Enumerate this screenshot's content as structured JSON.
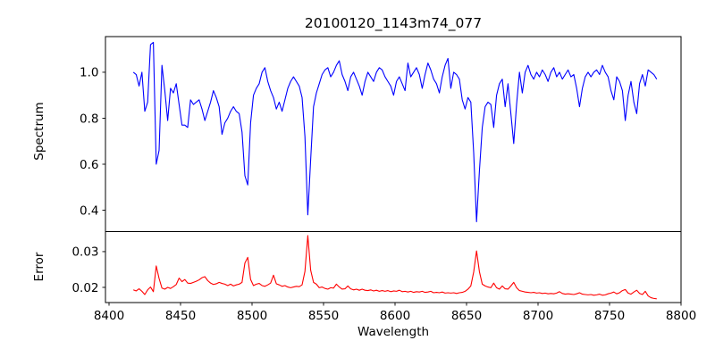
{
  "title": "20100120_1143m74_077",
  "colors": {
    "background": "#ffffff",
    "axis": "#000000",
    "text": "#000000",
    "spectrum_line": "#0000ff",
    "error_line": "#ff0000"
  },
  "chart_data": {
    "type": "line",
    "title": "20100120_1143m74_077",
    "xlabel": "Wavelength",
    "grid": false,
    "legend": "none",
    "x_start": 8417,
    "x_step": 2,
    "xlim": [
      8397.5,
      8800
    ],
    "xticks": [
      8400,
      8450,
      8500,
      8550,
      8600,
      8650,
      8700,
      8750,
      8800
    ],
    "xtick_labels": [
      "8400",
      "8450",
      "8500",
      "8550",
      "8600",
      "8650",
      "8700",
      "8750",
      "8800"
    ],
    "panels": [
      {
        "name": "spectrum",
        "ylabel": "Spectrum",
        "ylim": [
          0.307,
          1.155
        ],
        "yticks": [
          0.4,
          0.6,
          0.8,
          1.0
        ],
        "ytick_labels": [
          "0.4",
          "0.6",
          "0.8",
          "1.0"
        ],
        "line_color": "#0000ff",
        "values": [
          1.0,
          0.99,
          0.94,
          1.0,
          0.83,
          0.87,
          1.12,
          1.13,
          0.6,
          0.66,
          1.03,
          0.92,
          0.79,
          0.93,
          0.91,
          0.95,
          0.86,
          0.77,
          0.77,
          0.76,
          0.88,
          0.86,
          0.87,
          0.88,
          0.84,
          0.79,
          0.83,
          0.87,
          0.92,
          0.89,
          0.85,
          0.73,
          0.78,
          0.8,
          0.83,
          0.85,
          0.83,
          0.82,
          0.74,
          0.55,
          0.51,
          0.78,
          0.9,
          0.93,
          0.95,
          1.0,
          1.02,
          0.96,
          0.92,
          0.89,
          0.84,
          0.87,
          0.83,
          0.88,
          0.93,
          0.96,
          0.98,
          0.96,
          0.94,
          0.89,
          0.72,
          0.38,
          0.62,
          0.85,
          0.91,
          0.95,
          0.99,
          1.01,
          1.02,
          0.98,
          1.0,
          1.03,
          1.05,
          0.99,
          0.96,
          0.92,
          0.98,
          1.0,
          0.97,
          0.94,
          0.9,
          0.96,
          1.0,
          0.98,
          0.96,
          1.0,
          1.02,
          1.01,
          0.98,
          0.96,
          0.94,
          0.9,
          0.96,
          0.98,
          0.95,
          0.92,
          1.04,
          0.98,
          1.0,
          1.02,
          0.99,
          0.93,
          0.99,
          1.04,
          1.01,
          0.97,
          0.95,
          0.91,
          0.98,
          1.03,
          1.06,
          0.93,
          1.0,
          0.99,
          0.97,
          0.88,
          0.84,
          0.89,
          0.87,
          0.65,
          0.35,
          0.57,
          0.76,
          0.85,
          0.87,
          0.86,
          0.76,
          0.9,
          0.95,
          0.97,
          0.85,
          0.95,
          0.82,
          0.69,
          0.86,
          1.0,
          0.91,
          1.0,
          1.03,
          0.99,
          0.97,
          1.0,
          0.98,
          1.01,
          0.99,
          0.96,
          1.0,
          1.02,
          0.98,
          1.0,
          0.97,
          0.99,
          1.01,
          0.98,
          0.99,
          0.93,
          0.85,
          0.93,
          0.98,
          1.0,
          0.98,
          1.0,
          1.01,
          0.99,
          1.03,
          1.0,
          0.98,
          0.92,
          0.88,
          0.98,
          0.96,
          0.92,
          0.79,
          0.9,
          0.96,
          0.87,
          0.82,
          0.95,
          0.99,
          0.94,
          1.01,
          1.0,
          0.99,
          0.97
        ]
      },
      {
        "name": "error",
        "ylabel": "Error",
        "ylim": [
          0.01575,
          0.0356
        ],
        "yticks": [
          0.02,
          0.03
        ],
        "ytick_labels": [
          "0.02",
          "0.03"
        ],
        "line_color": "#ff0000",
        "values": [
          0.0193,
          0.019,
          0.0196,
          0.0189,
          0.018,
          0.0193,
          0.0201,
          0.0188,
          0.026,
          0.0225,
          0.0198,
          0.0195,
          0.02,
          0.0197,
          0.0202,
          0.0208,
          0.0226,
          0.0216,
          0.0222,
          0.0212,
          0.0211,
          0.0214,
          0.0217,
          0.0221,
          0.0227,
          0.023,
          0.0219,
          0.0212,
          0.0208,
          0.021,
          0.0214,
          0.0211,
          0.0209,
          0.0205,
          0.0209,
          0.0204,
          0.0207,
          0.0209,
          0.0214,
          0.0268,
          0.0284,
          0.0222,
          0.0205,
          0.0209,
          0.0211,
          0.0205,
          0.0203,
          0.0207,
          0.0212,
          0.0234,
          0.021,
          0.0207,
          0.0203,
          0.0205,
          0.0201,
          0.0199,
          0.0201,
          0.0203,
          0.0202,
          0.0207,
          0.0245,
          0.0345,
          0.0248,
          0.0214,
          0.0209,
          0.0199,
          0.0201,
          0.0197,
          0.0195,
          0.0199,
          0.0198,
          0.0209,
          0.0201,
          0.0195,
          0.0196,
          0.0204,
          0.0196,
          0.0193,
          0.0195,
          0.0192,
          0.0195,
          0.0192,
          0.0191,
          0.0193,
          0.019,
          0.0192,
          0.0189,
          0.0191,
          0.0189,
          0.0191,
          0.0188,
          0.019,
          0.0189,
          0.0192,
          0.0188,
          0.0189,
          0.0187,
          0.0189,
          0.0186,
          0.0188,
          0.0187,
          0.0189,
          0.0186,
          0.0187,
          0.0189,
          0.0185,
          0.0186,
          0.0185,
          0.0187,
          0.0184,
          0.0185,
          0.0184,
          0.0185,
          0.0183,
          0.0185,
          0.0186,
          0.0189,
          0.0195,
          0.0204,
          0.0243,
          0.0302,
          0.0244,
          0.0209,
          0.0204,
          0.0201,
          0.0199,
          0.0212,
          0.0199,
          0.0195,
          0.0204,
          0.0196,
          0.0195,
          0.0204,
          0.0214,
          0.0199,
          0.0191,
          0.0189,
          0.0187,
          0.0186,
          0.0185,
          0.0186,
          0.0184,
          0.0185,
          0.0183,
          0.0184,
          0.0182,
          0.0183,
          0.0182,
          0.0184,
          0.0188,
          0.0183,
          0.0181,
          0.0182,
          0.0181,
          0.018,
          0.0182,
          0.0185,
          0.0181,
          0.018,
          0.0179,
          0.018,
          0.0178,
          0.0179,
          0.0181,
          0.0178,
          0.0179,
          0.0182,
          0.0184,
          0.0187,
          0.0182,
          0.0185,
          0.0191,
          0.0194,
          0.0184,
          0.0181,
          0.0187,
          0.0192,
          0.0183,
          0.018,
          0.0189,
          0.0176,
          0.0171,
          0.0169,
          0.0168
        ]
      }
    ]
  }
}
